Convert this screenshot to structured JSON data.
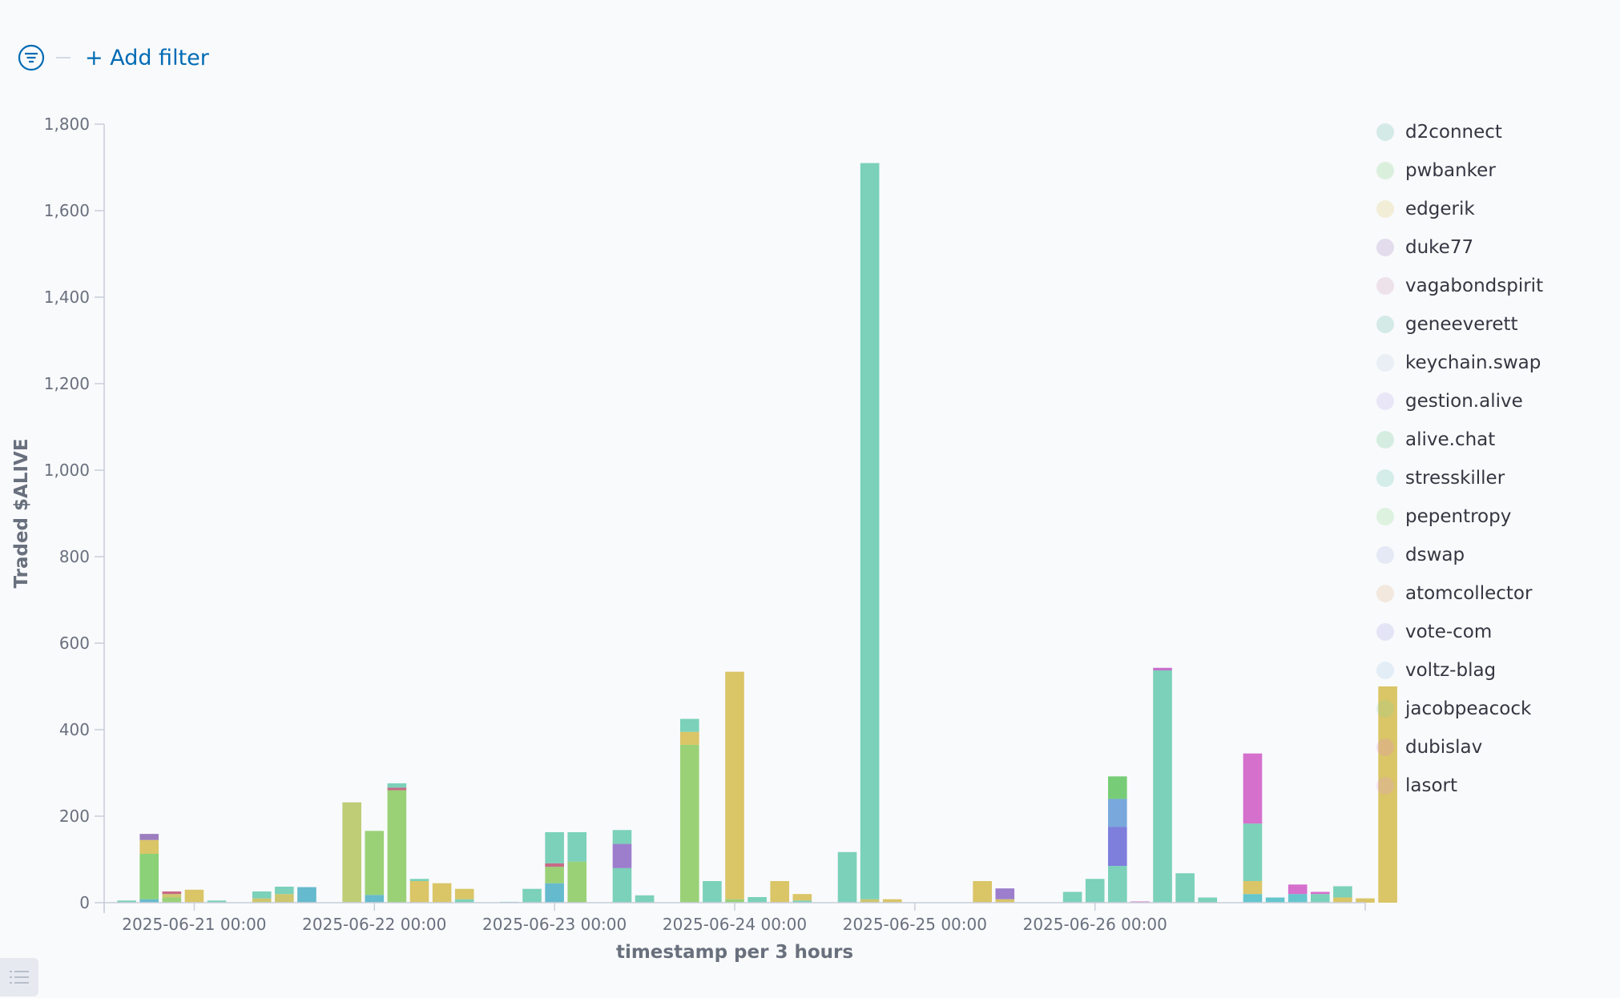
{
  "toolbar": {
    "filter_icon": "filter-icon",
    "add_filter_label": "+ Add filter"
  },
  "chart_data": {
    "type": "bar",
    "stacked": true,
    "xlabel": "timestamp per 3 hours",
    "ylabel": "Traded $ALIVE",
    "ylim": [
      0,
      1800
    ],
    "yticks": [
      0,
      200,
      400,
      600,
      800,
      1000,
      1200,
      1400,
      1600,
      1800
    ],
    "ytick_labels": [
      "0",
      "200",
      "400",
      "600",
      "800",
      "1,000",
      "1,200",
      "1,400",
      "1,600",
      "1,800"
    ],
    "xlim": [
      "2025-06-20 12:00",
      "2025-06-27 12:00"
    ],
    "x_tick_labels": [
      "2025-06-21 00:00",
      "2025-06-22 00:00",
      "2025-06-23 00:00",
      "2025-06-24 00:00",
      "2025-06-25 00:00",
      "2025-06-26 00:00"
    ],
    "bucket_hours": 3,
    "grid": false,
    "legend_position": "right",
    "series": [
      {
        "name": "d2connect",
        "color": "#54b399"
      },
      {
        "name": "pwbanker",
        "color": "#6dcc73"
      },
      {
        "name": "edgerik",
        "color": "#d6bf57"
      },
      {
        "name": "duke77",
        "color": "#9170b8"
      },
      {
        "name": "vagabondspirit",
        "color": "#ca8eae"
      },
      {
        "name": "geneeverett",
        "color": "#54b399"
      },
      {
        "name": "keychain.swap",
        "color": "#b0c9e0"
      },
      {
        "name": "gestion.alive",
        "color": "#b2a0e8"
      },
      {
        "name": "alive.chat",
        "color": "#54c080"
      },
      {
        "name": "stresskiller",
        "color": "#54c0a8"
      },
      {
        "name": "pepentropy",
        "color": "#7dd67b"
      },
      {
        "name": "dswap",
        "color": "#a0a8e0"
      },
      {
        "name": "atomcollector",
        "color": "#e0a878"
      },
      {
        "name": "vote-com",
        "color": "#9898e0"
      },
      {
        "name": "voltz-blag",
        "color": "#98c0e0"
      },
      {
        "name": "jacobpeacock",
        "color": "#88d8a0"
      },
      {
        "name": "dubislav",
        "color": "#e088d8"
      },
      {
        "name": "lasort",
        "color": "#e098e8"
      }
    ],
    "bars": [
      {
        "x": "2025-06-20 15:00",
        "segments": [
          {
            "value": 5,
            "color": "#6dccb1"
          }
        ]
      },
      {
        "x": "2025-06-20 18:00",
        "segments": [
          {
            "value": 8,
            "color": "#54b3c8"
          },
          {
            "value": 105,
            "color": "#7dcc68"
          },
          {
            "value": 32,
            "color": "#d6bf57"
          },
          {
            "value": 14,
            "color": "#9170b8"
          }
        ]
      },
      {
        "x": "2025-06-20 21:00",
        "segments": [
          {
            "value": 12,
            "color": "#8fcc68"
          },
          {
            "value": 8,
            "color": "#c8c060"
          },
          {
            "value": 6,
            "color": "#c05a78"
          }
        ]
      },
      {
        "x": "2025-06-21 00:00",
        "segments": [
          {
            "value": 30,
            "color": "#d6bf57"
          }
        ]
      },
      {
        "x": "2025-06-21 03:00",
        "segments": [
          {
            "value": 5,
            "color": "#6dccb1"
          }
        ]
      },
      {
        "x": "2025-06-21 09:00",
        "segments": [
          {
            "value": 10,
            "color": "#c8c060"
          },
          {
            "value": 16,
            "color": "#6dccb1"
          }
        ]
      },
      {
        "x": "2025-06-21 12:00",
        "segments": [
          {
            "value": 20,
            "color": "#c8c060"
          },
          {
            "value": 17,
            "color": "#6dccb1"
          }
        ]
      },
      {
        "x": "2025-06-21 15:00",
        "segments": [
          {
            "value": 36,
            "color": "#54b3c8"
          }
        ]
      },
      {
        "x": "2025-06-21 21:00",
        "segments": [
          {
            "value": 232,
            "color": "#b8c868"
          }
        ]
      },
      {
        "x": "2025-06-22 00:00",
        "segments": [
          {
            "value": 18,
            "color": "#54b3c8"
          },
          {
            "value": 148,
            "color": "#8fcc68"
          }
        ]
      },
      {
        "x": "2025-06-22 03:00",
        "segments": [
          {
            "value": 260,
            "color": "#8fcc68"
          },
          {
            "value": 6,
            "color": "#c05a78"
          },
          {
            "value": 10,
            "color": "#6dccb1"
          }
        ]
      },
      {
        "x": "2025-06-22 06:00",
        "segments": [
          {
            "value": 50,
            "color": "#d6bf57"
          },
          {
            "value": 5,
            "color": "#6dccb1"
          }
        ]
      },
      {
        "x": "2025-06-22 09:00",
        "segments": [
          {
            "value": 45,
            "color": "#d6bf57"
          }
        ]
      },
      {
        "x": "2025-06-22 12:00",
        "segments": [
          {
            "value": 8,
            "color": "#6dccb1"
          },
          {
            "value": 24,
            "color": "#d6bf57"
          }
        ]
      },
      {
        "x": "2025-06-22 18:00",
        "segments": [
          {
            "value": 2,
            "color": "#6dccb1"
          }
        ]
      },
      {
        "x": "2025-06-22 21:00",
        "segments": [
          {
            "value": 32,
            "color": "#6dccb1"
          }
        ]
      },
      {
        "x": "2025-06-23 00:00",
        "segments": [
          {
            "value": 45,
            "color": "#54b3c8"
          },
          {
            "value": 38,
            "color": "#8fcc68"
          },
          {
            "value": 8,
            "color": "#c05a78"
          },
          {
            "value": 72,
            "color": "#6dccb1"
          }
        ]
      },
      {
        "x": "2025-06-23 03:00",
        "segments": [
          {
            "value": 95,
            "color": "#8fcc68"
          },
          {
            "value": 68,
            "color": "#6dccb1"
          }
        ]
      },
      {
        "x": "2025-06-23 09:00",
        "segments": [
          {
            "value": 80,
            "color": "#6dccb1"
          },
          {
            "value": 56,
            "color": "#9170c8"
          },
          {
            "value": 32,
            "color": "#6dccb1"
          }
        ]
      },
      {
        "x": "2025-06-23 12:00",
        "segments": [
          {
            "value": 17,
            "color": "#6dccb1"
          }
        ]
      },
      {
        "x": "2025-06-23 18:00",
        "segments": [
          {
            "value": 365,
            "color": "#8fcc68"
          },
          {
            "value": 30,
            "color": "#d6bf57"
          },
          {
            "value": 30,
            "color": "#6dccb1"
          }
        ]
      },
      {
        "x": "2025-06-23 21:00",
        "segments": [
          {
            "value": 50,
            "color": "#6dccb1"
          }
        ]
      },
      {
        "x": "2025-06-24 00:00",
        "segments": [
          {
            "value": 8,
            "color": "#8fcc68"
          },
          {
            "value": 526,
            "color": "#d6bf57"
          }
        ]
      },
      {
        "x": "2025-06-24 03:00",
        "segments": [
          {
            "value": 13,
            "color": "#6dccb1"
          }
        ]
      },
      {
        "x": "2025-06-24 06:00",
        "segments": [
          {
            "value": 50,
            "color": "#d6bf57"
          }
        ]
      },
      {
        "x": "2025-06-24 09:00",
        "segments": [
          {
            "value": 5,
            "color": "#6dccb1"
          },
          {
            "value": 15,
            "color": "#d6bf57"
          }
        ]
      },
      {
        "x": "2025-06-24 15:00",
        "segments": [
          {
            "value": 117,
            "color": "#6dccb1"
          }
        ]
      },
      {
        "x": "2025-06-24 18:00",
        "segments": [
          {
            "value": 8,
            "color": "#c8c060"
          },
          {
            "value": 1702,
            "color": "#6dccb1"
          }
        ]
      },
      {
        "x": "2025-06-24 21:00",
        "segments": [
          {
            "value": 8,
            "color": "#d6bf57"
          }
        ]
      },
      {
        "x": "2025-06-25 09:00",
        "segments": [
          {
            "value": 50,
            "color": "#d6bf57"
          }
        ]
      },
      {
        "x": "2025-06-25 12:00",
        "segments": [
          {
            "value": 8,
            "color": "#d6bf57"
          },
          {
            "value": 25,
            "color": "#9170c8"
          }
        ]
      },
      {
        "x": "2025-06-25 21:00",
        "segments": [
          {
            "value": 25,
            "color": "#6dccb1"
          }
        ]
      },
      {
        "x": "2025-06-26 00:00",
        "segments": [
          {
            "value": 55,
            "color": "#6dccb1"
          }
        ]
      },
      {
        "x": "2025-06-26 03:00",
        "segments": [
          {
            "value": 85,
            "color": "#6dccb1"
          },
          {
            "value": 90,
            "color": "#7070d8"
          },
          {
            "value": 65,
            "color": "#6a9fd8"
          },
          {
            "value": 52,
            "color": "#68c868"
          }
        ]
      },
      {
        "x": "2025-06-26 06:00",
        "segments": [
          {
            "value": 3,
            "color": "#d080c8"
          }
        ]
      },
      {
        "x": "2025-06-26 09:00",
        "segments": [
          {
            "value": 537,
            "color": "#6dccb1"
          },
          {
            "value": 6,
            "color": "#c060c8"
          }
        ]
      },
      {
        "x": "2025-06-26 12:00",
        "segments": [
          {
            "value": 68,
            "color": "#6dccb1"
          }
        ]
      },
      {
        "x": "2025-06-26 15:00",
        "segments": [
          {
            "value": 12,
            "color": "#6dccb1"
          }
        ]
      },
      {
        "x": "2025-06-26 21:00",
        "segments": [
          {
            "value": 20,
            "color": "#54c0c8"
          },
          {
            "value": 30,
            "color": "#d6bf57"
          },
          {
            "value": 133,
            "color": "#6dccb1"
          },
          {
            "value": 162,
            "color": "#d060c8"
          }
        ]
      },
      {
        "x": "2025-06-27 00:00",
        "segments": [
          {
            "value": 12,
            "color": "#54c0c8"
          }
        ]
      },
      {
        "x": "2025-06-27 03:00",
        "segments": [
          {
            "value": 20,
            "color": "#54c0c8"
          },
          {
            "value": 22,
            "color": "#d060c8"
          }
        ]
      },
      {
        "x": "2025-06-27 06:00",
        "segments": [
          {
            "value": 20,
            "color": "#6dccb1"
          },
          {
            "value": 5,
            "color": "#d060c8"
          }
        ]
      },
      {
        "x": "2025-06-27 09:00",
        "segments": [
          {
            "value": 12,
            "color": "#d6bf57"
          },
          {
            "value": 26,
            "color": "#6dccb1"
          }
        ]
      },
      {
        "x": "2025-06-27 12:00",
        "segments": [
          {
            "value": 10,
            "color": "#d6bf57"
          }
        ]
      },
      {
        "x": "2025-06-27 15:00",
        "segments": [
          {
            "value": 500,
            "color": "#d6bf57"
          }
        ]
      }
    ]
  }
}
